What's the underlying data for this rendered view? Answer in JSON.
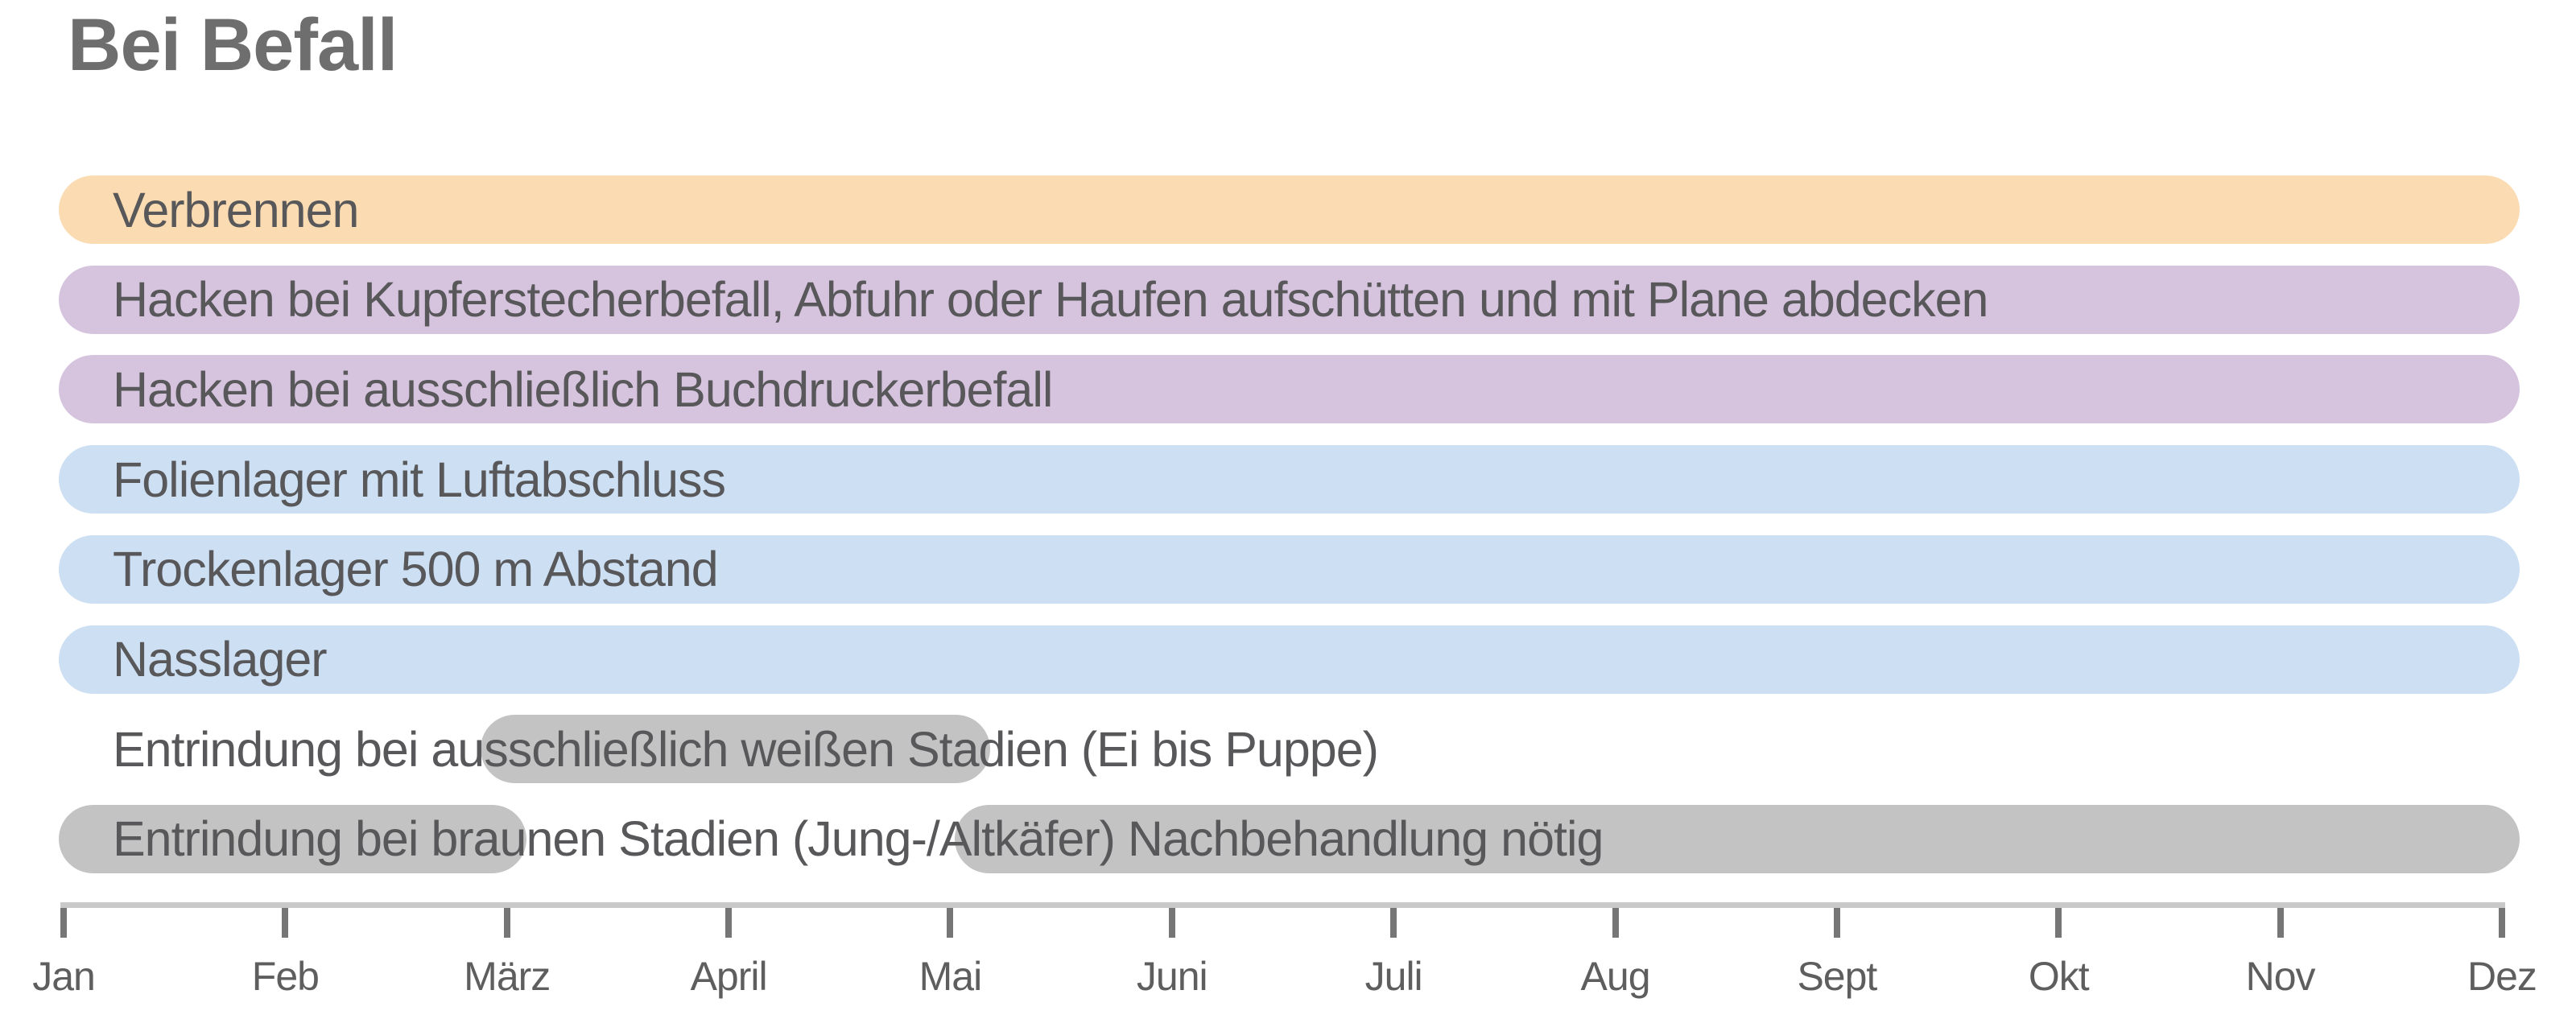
{
  "title": "Bei Befall",
  "colors": {
    "orange": "#fbdcb2",
    "purple": "#d6c3de",
    "blue": "#cddff3",
    "gray": "#c3c3c4",
    "label_text": "#58585a",
    "title_text": "#6e6e6e",
    "axis_line": "#c9c9c9",
    "tick": "#767676",
    "month_text": "#5e5e5e"
  },
  "chart_data": {
    "type": "timeline",
    "title": "Bei Befall",
    "months": [
      "Jan",
      "Feb",
      "März",
      "April",
      "Mai",
      "Juni",
      "Juli",
      "Aug",
      "Sept",
      "Okt",
      "Nov",
      "Dez"
    ],
    "axis": {
      "unit": "month",
      "range": [
        "Jan",
        "Dez"
      ],
      "grid": false,
      "legend": "none"
    },
    "rows": [
      {
        "label": "Verbrennen",
        "color": "orange",
        "range_months": "Jan–Dez",
        "segments": [
          [
            -0.02,
            11.08
          ]
        ]
      },
      {
        "label": "Hacken bei Kupferstecherbefall, Abfuhr oder Haufen aufschütten und mit Plane abdecken",
        "color": "purple",
        "range_months": "Jan–Dez",
        "segments": [
          [
            -0.02,
            11.08
          ]
        ]
      },
      {
        "label": "Hacken bei ausschließlich Buchdruckerbefall",
        "color": "purple",
        "range_months": "Jan–Dez",
        "segments": [
          [
            -0.02,
            11.08
          ]
        ]
      },
      {
        "label": "Folienlager mit Luftabschluss",
        "color": "blue",
        "range_months": "Jan–Dez",
        "segments": [
          [
            -0.02,
            11.08
          ]
        ]
      },
      {
        "label": "Trockenlager 500 m Abstand",
        "color": "blue",
        "range_months": "Jan–Dez",
        "segments": [
          [
            -0.02,
            11.08
          ]
        ]
      },
      {
        "label": "Nasslager",
        "color": "blue",
        "range_months": "Jan–Dez",
        "segments": [
          [
            -0.02,
            11.08
          ]
        ]
      },
      {
        "label": "Entrindung bei ausschließlich weißen Stadien (Ei bis Puppe)",
        "color": "gray",
        "range_months": "März–Mai",
        "segments": [
          [
            1.88,
            4.18
          ]
        ]
      },
      {
        "label": "Entrindung bei braunen Stadien (Jung-/Altkäfer) Nachbehandlung nötig",
        "color": "gray",
        "range_months": "Jan–März und Mai–Dez",
        "segments": [
          [
            -0.02,
            2.09
          ],
          [
            4.02,
            11.08
          ]
        ]
      }
    ]
  }
}
